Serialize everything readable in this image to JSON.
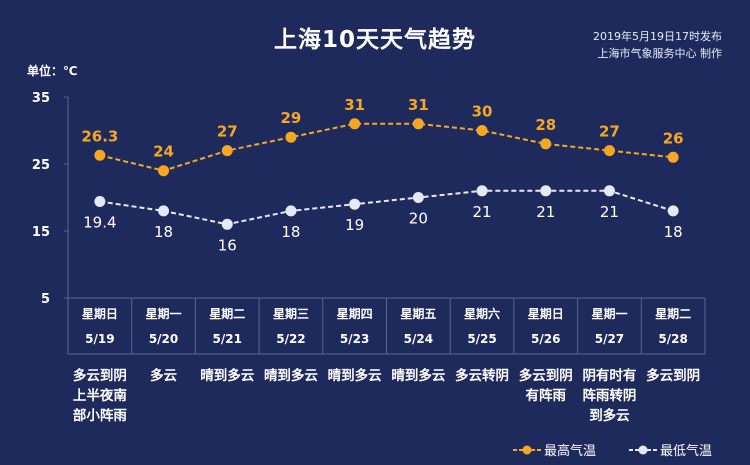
{
  "header": {
    "title": "上海10天天气趋势",
    "publish_line1": "2019年5月19日17时发布",
    "publish_line2": "上海市气象服务中心  制作"
  },
  "colors": {
    "background": "#1f2a5c",
    "high": "#f5a623",
    "low": "#e6e9f5",
    "grid": "#5a6594"
  },
  "chart_data": {
    "type": "line",
    "unit_label": "单位：℃",
    "yticks": [
      35,
      25,
      15,
      5
    ],
    "ylim": [
      5,
      35
    ],
    "weekdays": [
      "星期日",
      "星期一",
      "星期二",
      "星期三",
      "星期四",
      "星期五",
      "星期六",
      "星期日",
      "星期一",
      "星期二"
    ],
    "categories": [
      "5/19",
      "5/20",
      "5/21",
      "5/22",
      "5/23",
      "5/24",
      "5/25",
      "5/26",
      "5/27",
      "5/28"
    ],
    "series": [
      {
        "name": "最高气温",
        "values": [
          26.3,
          24,
          27,
          29,
          31,
          31,
          30,
          28,
          27,
          26
        ],
        "labels": [
          "26.3",
          "24",
          "27",
          "29",
          "31",
          "31",
          "30",
          "28",
          "27",
          "26"
        ]
      },
      {
        "name": "最低气温",
        "values": [
          19.4,
          18,
          16,
          18,
          19,
          20,
          21,
          21,
          21,
          18
        ],
        "labels": [
          "19.4",
          "18",
          "16",
          "18",
          "19",
          "20",
          "21",
          "21",
          "21",
          "18"
        ]
      }
    ],
    "descriptions": [
      [
        "多云到阴",
        "上半夜南",
        "部小阵雨"
      ],
      [
        "多云"
      ],
      [
        "晴到多云"
      ],
      [
        "晴到多云"
      ],
      [
        "晴到多云"
      ],
      [
        "晴到多云"
      ],
      [
        "多云转阴"
      ],
      [
        "多云到阴",
        "有阵雨"
      ],
      [
        "阴有时有",
        "阵雨转阴",
        "到多云"
      ],
      [
        "多云到阴"
      ]
    ]
  }
}
